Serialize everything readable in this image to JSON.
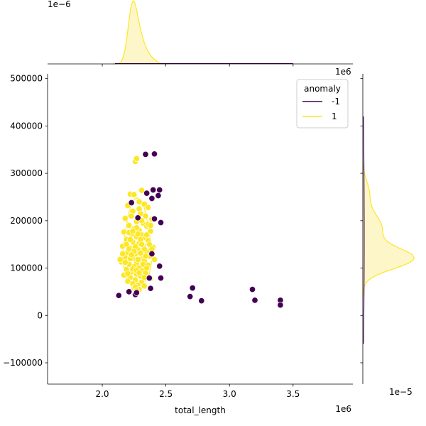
{
  "chart_data": {
    "type": "scatter",
    "xlabel": "total_length",
    "ylabel": "",
    "x_offset_label": "1e6",
    "y_marginal_offset_label": "1e6",
    "top_marginal_offset_label": "1e−6",
    "right_marginal_offset_label": "1e−5",
    "xlim": [
      1.57,
      3.97
    ],
    "ylim": [
      -145000,
      510000
    ],
    "x_ticks": [
      2.0,
      2.5,
      3.0,
      3.5
    ],
    "x_tick_labels": [
      "2.0",
      "2.5",
      "3.0",
      "3.5"
    ],
    "y_ticks": [
      -100000,
      0,
      100000,
      200000,
      300000,
      400000,
      500000
    ],
    "y_tick_labels": [
      "−100000",
      "0",
      "100000",
      "200000",
      "300000",
      "400000",
      "500000"
    ],
    "grid": false,
    "legend": {
      "title": "anomaly",
      "placement": "top-right",
      "entries": [
        {
          "label": "-1",
          "color": "#440154"
        },
        {
          "label": "1",
          "color": "#fde725"
        }
      ]
    },
    "colors": {
      "anomaly_neg": "#440154",
      "anomaly_pos": "#fde725",
      "kde_fill": "#fdf6c8"
    },
    "series": [
      {
        "name": "-1",
        "points": [
          [
            2.13,
            42000
          ],
          [
            2.21,
            50000
          ],
          [
            2.26,
            44000
          ],
          [
            2.28,
            206000
          ],
          [
            2.23,
            238000
          ],
          [
            2.34,
            340000
          ],
          [
            2.41,
            341000
          ],
          [
            2.35,
            258000
          ],
          [
            2.44,
            253000
          ],
          [
            2.39,
            247000
          ],
          [
            2.45,
            265000
          ],
          [
            2.4,
            265000
          ],
          [
            2.41,
            204000
          ],
          [
            2.46,
            196000
          ],
          [
            2.39,
            130000
          ],
          [
            2.45,
            104000
          ],
          [
            2.46,
            79000
          ],
          [
            2.38,
            57000
          ],
          [
            2.37,
            79000
          ],
          [
            2.27,
            48000
          ],
          [
            2.69,
            40000
          ],
          [
            2.71,
            58000
          ],
          [
            2.78,
            31000
          ],
          [
            3.18,
            55000
          ],
          [
            3.2,
            32000
          ],
          [
            3.4,
            32000
          ],
          [
            3.4,
            22000
          ]
        ]
      },
      {
        "name": "1",
        "points": [
          [
            2.26,
            325000
          ],
          [
            2.27,
            331000
          ],
          [
            2.22,
            256000
          ],
          [
            2.25,
            255000
          ],
          [
            2.31,
            264000
          ],
          [
            2.29,
            240000
          ],
          [
            2.33,
            235000
          ],
          [
            2.2,
            232000
          ],
          [
            2.36,
            228000
          ],
          [
            2.24,
            220000
          ],
          [
            2.3,
            215000
          ],
          [
            2.34,
            210000
          ],
          [
            2.18,
            205000
          ],
          [
            2.39,
            203000
          ],
          [
            2.27,
            198000
          ],
          [
            2.32,
            195000
          ],
          [
            2.21,
            190000
          ],
          [
            2.35,
            188000
          ],
          [
            2.25,
            183000
          ],
          [
            2.29,
            180000
          ],
          [
            2.38,
            178000
          ],
          [
            2.17,
            176000
          ],
          [
            2.23,
            172000
          ],
          [
            2.31,
            170000
          ],
          [
            2.27,
            166000
          ],
          [
            2.34,
            164000
          ],
          [
            2.19,
            160000
          ],
          [
            2.36,
            158000
          ],
          [
            2.24,
            155000
          ],
          [
            2.29,
            152000
          ],
          [
            2.32,
            149000
          ],
          [
            2.16,
            146000
          ],
          [
            2.4,
            144000
          ],
          [
            2.22,
            142000
          ],
          [
            2.28,
            139000
          ],
          [
            2.35,
            136000
          ],
          [
            2.2,
            133000
          ],
          [
            2.26,
            130000
          ],
          [
            2.31,
            128000
          ],
          [
            2.37,
            125000
          ],
          [
            2.18,
            122000
          ],
          [
            2.24,
            120000
          ],
          [
            2.3,
            118000
          ],
          [
            2.33,
            115000
          ],
          [
            2.15,
            113000
          ],
          [
            2.27,
            110000
          ],
          [
            2.21,
            108000
          ],
          [
            2.36,
            106000
          ],
          [
            2.25,
            103000
          ],
          [
            2.29,
            100000
          ],
          [
            2.19,
            97000
          ],
          [
            2.32,
            95000
          ],
          [
            2.23,
            92000
          ],
          [
            2.34,
            90000
          ],
          [
            2.27,
            87000
          ],
          [
            2.17,
            85000
          ],
          [
            2.3,
            83000
          ],
          [
            2.22,
            80000
          ],
          [
            2.38,
            78000
          ],
          [
            2.26,
            75000
          ],
          [
            2.2,
            72000
          ],
          [
            2.31,
            70000
          ],
          [
            2.24,
            67000
          ],
          [
            2.28,
            64000
          ],
          [
            2.33,
            62000
          ],
          [
            2.25,
            58000
          ],
          [
            2.29,
            55000
          ],
          [
            2.22,
            120000
          ],
          [
            2.26,
            145000
          ],
          [
            2.3,
            160000
          ],
          [
            2.21,
            175000
          ],
          [
            2.27,
            185000
          ],
          [
            2.33,
            140000
          ],
          [
            2.24,
            98000
          ],
          [
            2.28,
            118000
          ],
          [
            2.35,
            170000
          ],
          [
            2.19,
            150000
          ],
          [
            2.31,
            200000
          ],
          [
            2.23,
            210000
          ],
          [
            2.37,
            150000
          ],
          [
            2.16,
            130000
          ],
          [
            2.29,
            225000
          ],
          [
            2.25,
            135000
          ],
          [
            2.32,
            108000
          ],
          [
            2.2,
            88000
          ],
          [
            2.27,
            95000
          ],
          [
            2.34,
            125000
          ],
          [
            2.22,
            160000
          ],
          [
            2.28,
            172000
          ],
          [
            2.36,
            192000
          ],
          [
            2.18,
            112000
          ],
          [
            2.3,
            132000
          ],
          [
            2.24,
            178000
          ],
          [
            2.26,
            60000
          ],
          [
            2.33,
            80000
          ],
          [
            2.21,
            140000
          ],
          [
            2.35,
            100000
          ],
          [
            2.29,
            90000
          ],
          [
            2.23,
            128000
          ],
          [
            2.31,
            150000
          ],
          [
            2.39,
            140000
          ],
          [
            2.41,
            118000
          ],
          [
            2.14,
            118000
          ],
          [
            2.38,
            190000
          ],
          [
            2.27,
            52000
          ]
        ]
      }
    ]
  }
}
